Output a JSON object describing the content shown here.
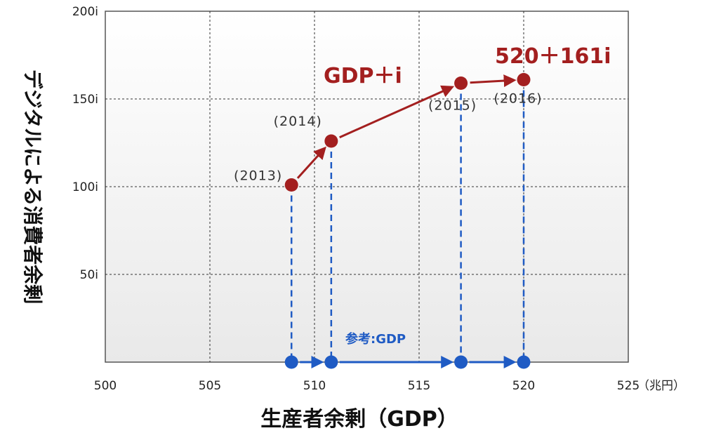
{
  "chart_data": {
    "type": "scatter",
    "xlabel": "生産者余剰（GDP）",
    "ylabel": "デジタルによる消費者余剰",
    "x_unit": "（兆円）",
    "xlim": [
      500,
      525
    ],
    "ylim": [
      0,
      200
    ],
    "x_ticks": [
      "500",
      "505",
      "510",
      "515",
      "520",
      "525"
    ],
    "y_ticks": [
      "50i",
      "100i",
      "150i",
      "200i"
    ],
    "grid": true,
    "series": [
      {
        "name": "",
        "color": "#a31f1f",
        "points": [
          {
            "label": "(2013)",
            "x": 508.9,
            "y": 101
          },
          {
            "label": "(2014)",
            "x": 510.8,
            "y": 126
          },
          {
            "label": "(2015)",
            "x": 517.0,
            "y": 159
          },
          {
            "label": "(2016)",
            "x": 520.0,
            "y": 161
          }
        ]
      },
      {
        "name": "参考:GDP",
        "color": "#1f5bc4",
        "points": [
          {
            "x": 508.9,
            "y": 0
          },
          {
            "x": 510.8,
            "y": 0
          },
          {
            "x": 517.0,
            "y": 0
          },
          {
            "x": 520.0,
            "y": 0
          }
        ]
      }
    ],
    "annotations": {
      "gdp_plus_i": "GDP＋i",
      "final_value": "520＋161i",
      "reference": "参考:GDP"
    }
  }
}
